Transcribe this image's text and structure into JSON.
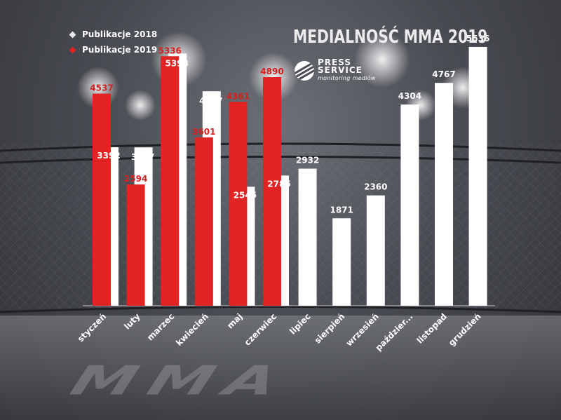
{
  "title": "MEDIALNOŚĆ MMA 2019",
  "logo": {
    "line1": "PRESS",
    "line2": "SERVICE",
    "line3": "monitoring mediów"
  },
  "watermark": "MMA",
  "colors": {
    "y2018": "#ffffff",
    "y2019": "#e02424",
    "lbl2019": "#d42020",
    "background": "#4a4c53"
  },
  "chart_data": {
    "type": "bar",
    "title": "MEDIALNOŚĆ MMA 2019",
    "categories": [
      "styczeń",
      "luty",
      "marzec",
      "kwiecień",
      "maj",
      "czerwiec",
      "lipiec",
      "sierpień",
      "wrzesień",
      "paździer...",
      "listopad",
      "grudzień"
    ],
    "series": [
      {
        "name": "Publikacje 2018",
        "values": [
          3392,
          3387,
          5393,
          4587,
          2545,
          2785,
          2932,
          1871,
          2360,
          4304,
          4767,
          5536
        ]
      },
      {
        "name": "Publikacje 2019",
        "values": [
          4537,
          2594,
          5336,
          3601,
          4361,
          4890,
          null,
          null,
          null,
          null,
          null,
          null
        ]
      }
    ],
    "ylim": [
      0,
      6000
    ],
    "grid": false,
    "legend": "top-left"
  }
}
